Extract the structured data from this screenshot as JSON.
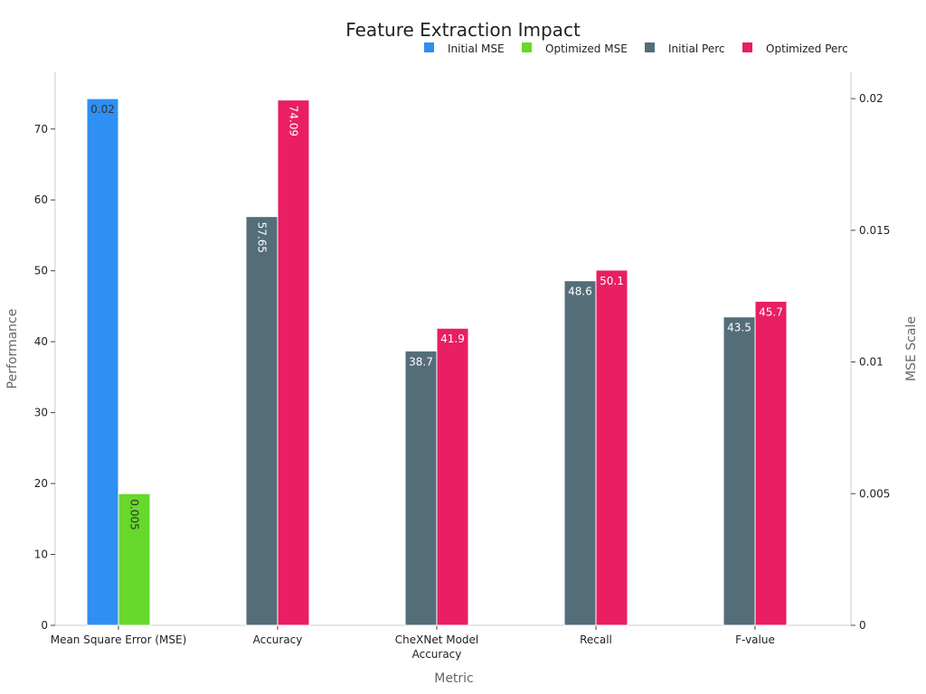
{
  "chart_data": {
    "type": "bar",
    "title": "Feature Extraction Impact",
    "xlabel": "Metric",
    "ylabel": "Performance",
    "y2label": "MSE Scale",
    "categories": [
      "Mean Square Error (MSE)",
      "Accuracy",
      "CheXNet Model Accuracy",
      "Recall",
      "F-value"
    ],
    "category_lines": [
      [
        "Mean Square Error (MSE)"
      ],
      [
        "Accuracy"
      ],
      [
        "CheXNet Model",
        "Accuracy"
      ],
      [
        "Recall"
      ],
      [
        "F-value"
      ]
    ],
    "ylim": [
      0,
      78
    ],
    "y2lim": [
      0,
      0.021
    ],
    "yticks": [
      0,
      10,
      20,
      30,
      40,
      50,
      60,
      70
    ],
    "y2ticks": [
      0,
      0.005,
      0.01,
      0.015,
      0.02
    ],
    "legend_position": "top-right",
    "series": [
      {
        "name": "Initial MSE",
        "color": "#2f8ff2",
        "axis": "right",
        "values": [
          0.02,
          null,
          null,
          null,
          null
        ],
        "labels": [
          "0.02",
          null,
          null,
          null,
          null
        ]
      },
      {
        "name": "Optimized MSE",
        "color": "#66d92b",
        "axis": "right",
        "values": [
          0.005,
          null,
          null,
          null,
          null
        ],
        "labels": [
          "0.005",
          null,
          null,
          null,
          null
        ]
      },
      {
        "name": "Initial Perc",
        "color": "#546e79",
        "axis": "left",
        "values": [
          null,
          57.65,
          38.7,
          48.6,
          43.5
        ],
        "labels": [
          null,
          "57.65",
          "38.7",
          "48.6",
          "43.5"
        ]
      },
      {
        "name": "Optimized Perc",
        "color": "#e91e63",
        "axis": "left",
        "values": [
          null,
          74.09,
          41.9,
          50.1,
          45.7
        ],
        "labels": [
          null,
          "74.09",
          "41.9",
          "50.1",
          "45.7"
        ]
      }
    ]
  }
}
